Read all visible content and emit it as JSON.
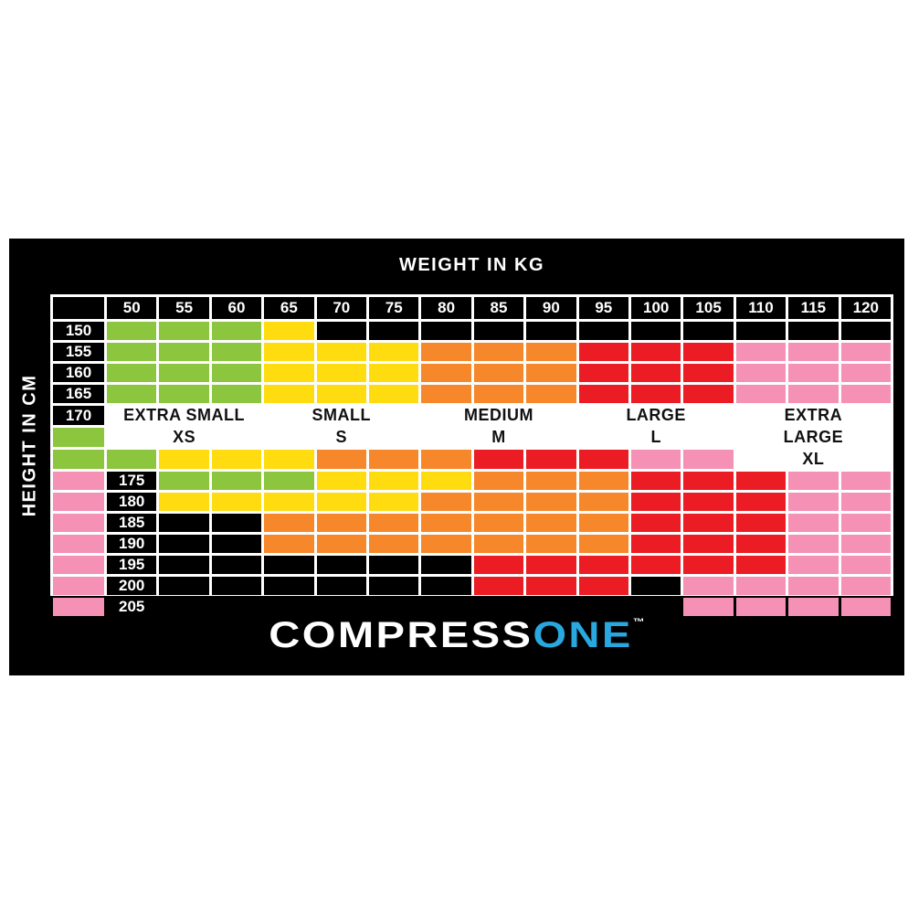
{
  "axes": {
    "weight_title": "WEIGHT IN KG",
    "height_title": "HEIGHT IN CM"
  },
  "logo": {
    "part1": "COMPRESS",
    "part2": "ONE",
    "tm": "™"
  },
  "brand_colors": {
    "logo_white": "#ffffff",
    "logo_blue": "#29A8E0",
    "panel_black": "#000000",
    "gridline_white": "#ffffff"
  },
  "chart_data": {
    "type": "heatmap",
    "title": "",
    "xlabel": "WEIGHT IN KG",
    "ylabel": "HEIGHT IN CM",
    "x_labels": [
      "50",
      "55",
      "60",
      "65",
      "70",
      "75",
      "80",
      "85",
      "90",
      "95",
      "100",
      "105",
      "110",
      "115",
      "120"
    ],
    "y_labels": [
      "150",
      "155",
      "160",
      "165",
      "170",
      "175",
      "180",
      "185",
      "190",
      "195",
      "200",
      "205"
    ],
    "cell_colors": {
      "XS": "#8CC63E",
      "S": "#FFDC10",
      "M": "#F6882B",
      "L": "#EB1C24",
      "XL": "#F491B5",
      "none": "#000000"
    },
    "rows": [
      [
        "XS",
        "XS",
        "XS",
        "S",
        "none",
        "none",
        "none",
        "none",
        "none",
        "none",
        "none",
        "none",
        "none",
        "none",
        "none"
      ],
      [
        "XS",
        "XS",
        "XS",
        "S",
        "S",
        "S",
        "M",
        "M",
        "M",
        "L",
        "L",
        "L",
        "XL",
        "XL",
        "XL"
      ],
      [
        "XS",
        "XS",
        "XS",
        "S",
        "S",
        "S",
        "M",
        "M",
        "M",
        "L",
        "L",
        "L",
        "XL",
        "XL",
        "XL"
      ],
      [
        "XS",
        "XS",
        "XS",
        "S",
        "S",
        "S",
        "M",
        "M",
        "M",
        "L",
        "L",
        "L",
        "XL",
        "XL",
        "XL"
      ],
      [
        "XS",
        "XS",
        "XS",
        "S",
        "S",
        "S",
        "M",
        "M",
        "M",
        "L",
        "L",
        "L",
        "XL",
        "XL",
        "XL"
      ],
      [
        "XS",
        "XS",
        "XS",
        "S",
        "S",
        "S",
        "M",
        "M",
        "M",
        "L",
        "L",
        "L",
        "XL",
        "XL",
        "XL"
      ],
      [
        "S",
        "S",
        "S",
        "S",
        "S",
        "M",
        "M",
        "M",
        "M",
        "L",
        "L",
        "L",
        "XL",
        "XL",
        "XL"
      ],
      [
        "none",
        "none",
        "M",
        "M",
        "M",
        "M",
        "M",
        "M",
        "M",
        "L",
        "L",
        "L",
        "XL",
        "XL",
        "XL"
      ],
      [
        "none",
        "none",
        "M",
        "M",
        "M",
        "M",
        "M",
        "M",
        "M",
        "L",
        "L",
        "L",
        "XL",
        "XL",
        "XL"
      ],
      [
        "none",
        "none",
        "none",
        "none",
        "none",
        "none",
        "L",
        "L",
        "L",
        "L",
        "L",
        "L",
        "XL",
        "XL",
        "XL"
      ],
      [
        "none",
        "none",
        "none",
        "none",
        "none",
        "none",
        "L",
        "L",
        "L",
        "none",
        "XL",
        "XL",
        "XL",
        "XL",
        "XL"
      ],
      [
        "none",
        "none",
        "none",
        "none",
        "none",
        "none",
        "none",
        "none",
        "none",
        "none",
        "XL",
        "XL",
        "XL",
        "XL",
        "XL"
      ]
    ],
    "size_labels": [
      {
        "text": "EXTRA SMALL",
        "group": 0,
        "row": 4
      },
      {
        "text": "XS",
        "group": 0,
        "row": 5
      },
      {
        "text": "SMALL",
        "group": 1,
        "row": 4
      },
      {
        "text": "S",
        "group": 1,
        "row": 5
      },
      {
        "text": "MEDIUM",
        "group": 2,
        "row": 4
      },
      {
        "text": "M",
        "group": 2,
        "row": 5
      },
      {
        "text": "LARGE",
        "group": 3,
        "row": 4
      },
      {
        "text": "L",
        "group": 3,
        "row": 5
      },
      {
        "text": "EXTRA",
        "group": 4,
        "row": 4
      },
      {
        "text": "LARGE",
        "group": 4,
        "row": 5
      },
      {
        "text": "XL",
        "group": 4,
        "row": 6
      }
    ]
  }
}
